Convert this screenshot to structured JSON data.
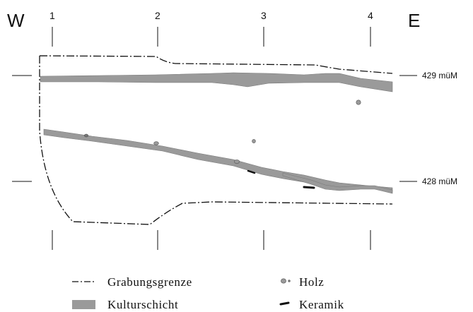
{
  "directions": {
    "west": "W",
    "east": "E"
  },
  "grid_labels": [
    "1",
    "2",
    "3",
    "4"
  ],
  "elevations": {
    "upper": "429 müM",
    "lower": "428 müM"
  },
  "legend": {
    "boundary": "Grabungsgrenze",
    "culture_layer": "Kulturschicht",
    "wood": "Holz",
    "ceramic": "Keramik"
  },
  "colors": {
    "line": "#111111",
    "layer": "#9a9a9a",
    "layer_edge": "#7a7a7a",
    "wood": "#9a9a9a",
    "ceramic": "#111111"
  }
}
